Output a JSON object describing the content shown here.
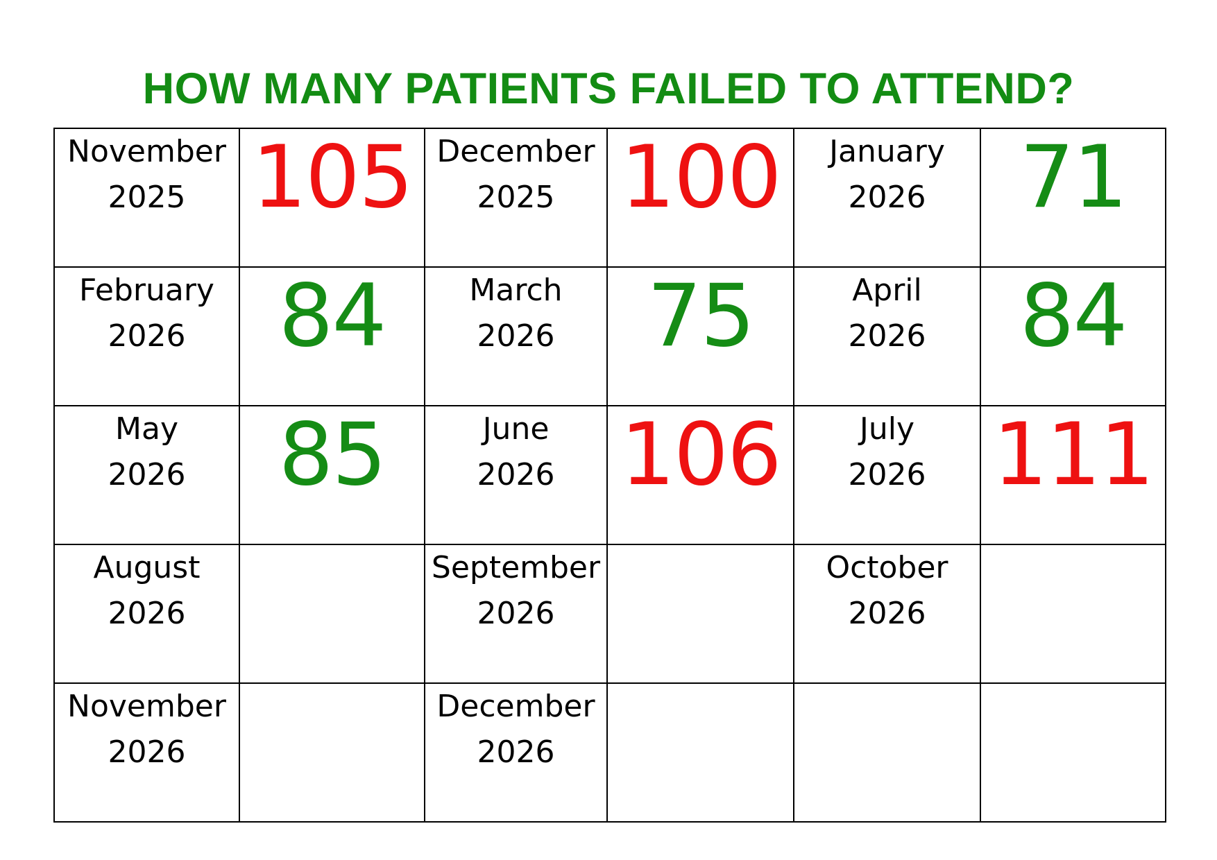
{
  "title": "HOW MANY PATIENTS FAILED TO ATTEND?",
  "colors": {
    "title": "#138c13",
    "above_threshold": "#ee1111",
    "below_threshold": "#158c15",
    "grid_lines": "#000000"
  },
  "rows": [
    [
      {
        "month": "November",
        "year": "2025",
        "value": "105",
        "status": "red"
      },
      {
        "month": "December",
        "year": "2025",
        "value": "100",
        "status": "red"
      },
      {
        "month": "January",
        "year": "2026",
        "value": "71",
        "status": "green"
      }
    ],
    [
      {
        "month": "February",
        "year": "2026",
        "value": "84",
        "status": "green"
      },
      {
        "month": "March",
        "year": "2026",
        "value": "75",
        "status": "green"
      },
      {
        "month": "April",
        "year": "2026",
        "value": "84",
        "status": "green"
      }
    ],
    [
      {
        "month": "May",
        "year": "2026",
        "value": "85",
        "status": "green"
      },
      {
        "month": "June",
        "year": "2026",
        "value": "106",
        "status": "red"
      },
      {
        "month": "July",
        "year": "2026",
        "value": "111",
        "status": "red"
      }
    ],
    [
      {
        "month": "August",
        "year": "2026",
        "value": "",
        "status": ""
      },
      {
        "month": "September",
        "year": "2026",
        "value": "",
        "status": ""
      },
      {
        "month": "October",
        "year": "2026",
        "value": "",
        "status": ""
      }
    ],
    [
      {
        "month": "November",
        "year": "2026",
        "value": "",
        "status": ""
      },
      {
        "month": "December",
        "year": "2026",
        "value": "",
        "status": ""
      },
      {
        "month": "",
        "year": "",
        "value": "",
        "status": ""
      }
    ]
  ]
}
